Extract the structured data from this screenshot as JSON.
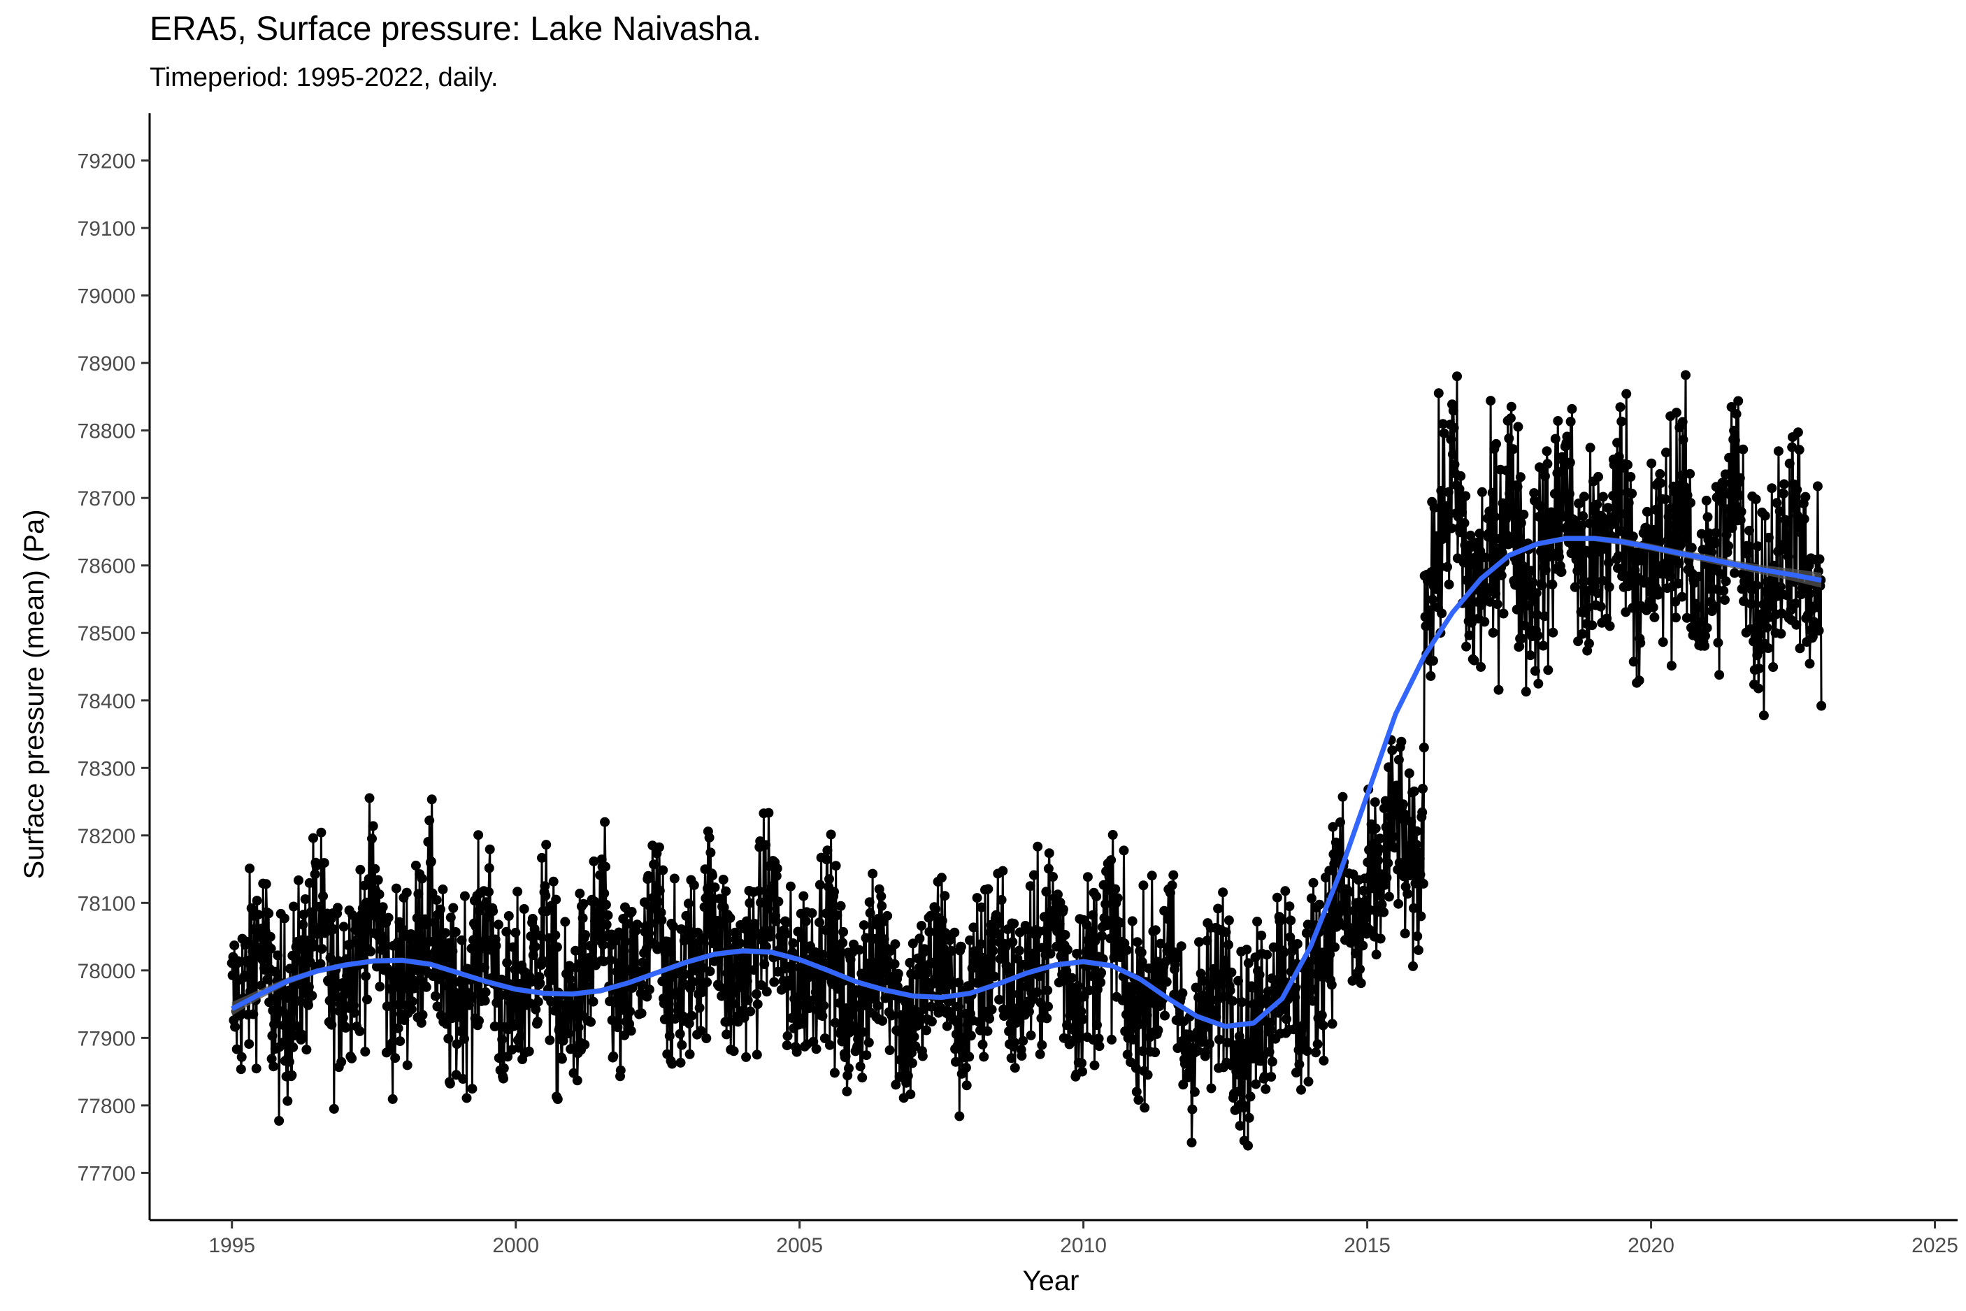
{
  "chart_data": {
    "type": "line",
    "title": "ERA5, Surface pressure: Lake Naivasha.",
    "subtitle": "Timeperiod: 1995-2022, daily.",
    "xlabel": "Year",
    "ylabel": "Surface pressure (mean) (Pa)",
    "xlim": [
      1993.55,
      2025.4
    ],
    "ylim": [
      77630,
      79270
    ],
    "xticks": [
      1995,
      2000,
      2005,
      2010,
      2015,
      2020,
      2025
    ],
    "yticks": [
      77700,
      77800,
      77900,
      78000,
      78100,
      78200,
      78300,
      78400,
      78500,
      78600,
      78700,
      78800,
      78900,
      79000,
      79100,
      79200
    ],
    "grid": false,
    "legend": "none",
    "series": [
      {
        "kind": "daily points with connecting line",
        "color": "#000000",
        "x": [
          1995.0,
          1995.5,
          1996.0,
          1996.5,
          1997.0,
          1997.5,
          1998.0,
          1998.5,
          1999.0,
          1999.5,
          2000.0,
          2000.5,
          2001.0,
          2001.5,
          2002.0,
          2002.5,
          2003.0,
          2003.5,
          2004.0,
          2004.5,
          2005.0,
          2005.5,
          2006.0,
          2006.5,
          2007.0,
          2007.5,
          2008.0,
          2008.5,
          2009.0,
          2009.5,
          2010.0,
          2010.5,
          2011.0,
          2011.5,
          2012.0,
          2012.5,
          2013.0,
          2013.5,
          2014.0,
          2014.5,
          2015.0,
          2015.5,
          2016.0,
          2016.5,
          2017.0,
          2017.5,
          2018.0,
          2018.5,
          2019.0,
          2019.5,
          2020.0,
          2020.5,
          2021.0,
          2021.5,
          2022.0,
          2022.5,
          2023.0
        ],
        "y": [
          77950,
          78000,
          77960,
          78030,
          78010,
          78050,
          78000,
          78040,
          77970,
          78020,
          77960,
          78010,
          77950,
          78020,
          77980,
          78030,
          78000,
          78050,
          78010,
          78060,
          78000,
          78020,
          77960,
          78000,
          77950,
          77990,
          77960,
          78010,
          77990,
          78030,
          78000,
          78030,
          77970,
          77980,
          77920,
          77960,
          77920,
          77980,
          77990,
          78080,
          78100,
          78180,
          78550,
          78680,
          78580,
          78660,
          78600,
          78670,
          78610,
          78660,
          78600,
          78650,
          78580,
          78670,
          78570,
          78630,
          78550
        ],
        "min": 77700,
        "max": 78980
      },
      {
        "kind": "loess smooth",
        "color": "#3366ff",
        "band_color": "#555555",
        "x": [
          1995.0,
          1995.5,
          1996.0,
          1996.5,
          1997.0,
          1997.5,
          1998.0,
          1998.5,
          1999.0,
          1999.5,
          2000.0,
          2000.5,
          2001.0,
          2001.5,
          2002.0,
          2002.5,
          2003.0,
          2003.5,
          2004.0,
          2004.5,
          2005.0,
          2005.5,
          2006.0,
          2006.5,
          2007.0,
          2007.5,
          2008.0,
          2008.5,
          2009.0,
          2009.5,
          2010.0,
          2010.5,
          2011.0,
          2011.5,
          2012.0,
          2012.5,
          2013.0,
          2013.5,
          2014.0,
          2014.5,
          2015.0,
          2015.5,
          2016.0,
          2016.5,
          2017.0,
          2017.5,
          2018.0,
          2018.5,
          2019.0,
          2019.5,
          2020.0,
          2020.5,
          2021.0,
          2021.5,
          2022.0,
          2022.5,
          2023.0
        ],
        "y": [
          77943,
          77965,
          77985,
          77999,
          78008,
          78014,
          78015,
          78009,
          77996,
          77983,
          77972,
          77966,
          77965,
          77970,
          77982,
          77997,
          78012,
          78024,
          78029,
          78027,
          78016,
          78000,
          77983,
          77971,
          77962,
          77960,
          77966,
          77980,
          77996,
          78008,
          78013,
          78007,
          77987,
          77958,
          77932,
          77917,
          77922,
          77958,
          78035,
          78140,
          78260,
          78380,
          78465,
          78530,
          78580,
          78615,
          78632,
          78640,
          78640,
          78635,
          78627,
          78618,
          78610,
          78601,
          78593,
          78586,
          78578
        ],
        "band_halfwidth": [
          10,
          7,
          5,
          4,
          4,
          4,
          4,
          4,
          4,
          4,
          4,
          4,
          4,
          4,
          4,
          4,
          4,
          4,
          4,
          4,
          4,
          4,
          4,
          4,
          4,
          4,
          4,
          4,
          4,
          4,
          4,
          4,
          4,
          4,
          4,
          4,
          4,
          4,
          4,
          4,
          4,
          4,
          4,
          4,
          4,
          4,
          4,
          4,
          4,
          5,
          5,
          5,
          6,
          6,
          7,
          9,
          11
        ]
      }
    ]
  }
}
